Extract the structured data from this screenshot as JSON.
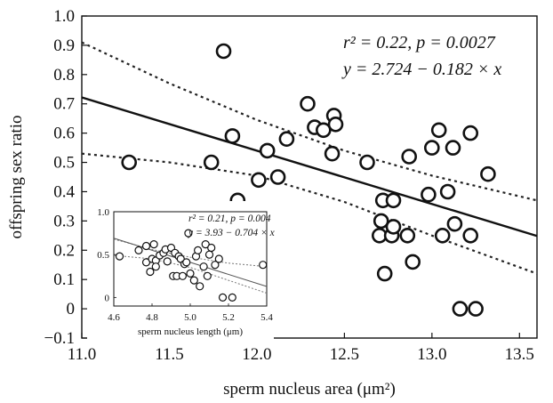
{
  "chart_data": [
    {
      "type": "scatter",
      "xlabel": "sperm nucleus area (μm²)",
      "ylabel": "offspring sex ratio",
      "xlim": [
        11.0,
        13.6
      ],
      "ylim": [
        -0.1,
        1.0
      ],
      "xticks": [
        "11.0",
        "11.5",
        "12.0",
        "12.5",
        "13.0",
        "13.5"
      ],
      "yticks": [
        "−0.1",
        "0",
        "0.1",
        "0.2",
        "0.3",
        "0.4",
        "0.5",
        "0.6",
        "0.7",
        "0.8",
        "0.9",
        "1.0"
      ],
      "annotation_stats": "r² = 0.22, p = 0.0027",
      "annotation_equation": "y = 2.724 − 0.182 × x",
      "fit": {
        "intercept": 2.724,
        "slope": -0.182
      },
      "ci_upper": [
        [
          11.0,
          0.91
        ],
        [
          11.5,
          0.77
        ],
        [
          12.0,
          0.645
        ],
        [
          12.5,
          0.54
        ],
        [
          13.0,
          0.455
        ],
        [
          13.6,
          0.37
        ]
      ],
      "ci_lower": [
        [
          11.0,
          0.53
        ],
        [
          11.5,
          0.5
        ],
        [
          12.0,
          0.455
        ],
        [
          12.5,
          0.365
        ],
        [
          13.0,
          0.25
        ],
        [
          13.6,
          0.12
        ]
      ],
      "points": [
        [
          11.27,
          0.5
        ],
        [
          11.74,
          0.5
        ],
        [
          11.81,
          0.88
        ],
        [
          11.86,
          0.59
        ],
        [
          11.89,
          0.37
        ],
        [
          12.01,
          0.44
        ],
        [
          12.06,
          0.54
        ],
        [
          12.12,
          0.45
        ],
        [
          12.17,
          0.58
        ],
        [
          12.29,
          0.7
        ],
        [
          12.33,
          0.62
        ],
        [
          12.38,
          0.61
        ],
        [
          12.43,
          0.53
        ],
        [
          12.44,
          0.66
        ],
        [
          12.45,
          0.63
        ],
        [
          12.63,
          0.5
        ],
        [
          12.7,
          0.25
        ],
        [
          12.71,
          0.3
        ],
        [
          12.72,
          0.37
        ],
        [
          12.73,
          0.12
        ],
        [
          12.77,
          0.25
        ],
        [
          12.78,
          0.28
        ],
        [
          12.78,
          0.37
        ],
        [
          12.86,
          0.25
        ],
        [
          12.87,
          0.52
        ],
        [
          12.89,
          0.16
        ],
        [
          12.98,
          0.39
        ],
        [
          13.0,
          0.55
        ],
        [
          13.04,
          0.61
        ],
        [
          13.06,
          0.25
        ],
        [
          13.09,
          0.4
        ],
        [
          13.12,
          0.55
        ],
        [
          13.13,
          0.29
        ],
        [
          13.16,
          0.0
        ],
        [
          13.22,
          0.25
        ],
        [
          13.22,
          0.6
        ],
        [
          13.25,
          0.0
        ],
        [
          13.32,
          0.46
        ]
      ]
    },
    {
      "type": "scatter",
      "xlabel": "sperm nucleus length (μm)",
      "xlim": [
        4.6,
        5.4
      ],
      "ylim": [
        -0.1,
        1.0
      ],
      "xticks": [
        "4.6",
        "4.8",
        "5.0",
        "5.2",
        "5.4"
      ],
      "yticks": [
        "0",
        "0.5",
        "1.0"
      ],
      "annotation_stats": "r² = 0.21, p = 0.004",
      "annotation_equation": "y = 3.93 − 0.704 × x",
      "fit": {
        "intercept": 3.93,
        "slope": -0.704
      },
      "ci_upper": [
        [
          4.6,
          0.68
        ],
        [
          4.8,
          0.56
        ],
        [
          5.0,
          0.47
        ],
        [
          5.2,
          0.4
        ],
        [
          5.4,
          0.36
        ]
      ],
      "ci_lower": [
        [
          4.6,
          0.49
        ],
        [
          4.8,
          0.45
        ],
        [
          5.0,
          0.35
        ],
        [
          5.2,
          0.2
        ],
        [
          5.4,
          0.05
        ]
      ],
      "points": [
        [
          4.63,
          0.48
        ],
        [
          4.73,
          0.55
        ],
        [
          4.77,
          0.6
        ],
        [
          4.77,
          0.41
        ],
        [
          4.79,
          0.3
        ],
        [
          4.8,
          0.45
        ],
        [
          4.81,
          0.62
        ],
        [
          4.82,
          0.43
        ],
        [
          4.82,
          0.36
        ],
        [
          4.84,
          0.49
        ],
        [
          4.86,
          0.52
        ],
        [
          4.87,
          0.56
        ],
        [
          4.88,
          0.42
        ],
        [
          4.9,
          0.58
        ],
        [
          4.91,
          0.25
        ],
        [
          4.92,
          0.52
        ],
        [
          4.93,
          0.25
        ],
        [
          4.94,
          0.48
        ],
        [
          4.95,
          0.45
        ],
        [
          4.96,
          0.25
        ],
        [
          4.97,
          0.39
        ],
        [
          4.98,
          0.41
        ],
        [
          4.99,
          0.75
        ],
        [
          5.0,
          0.28
        ],
        [
          5.02,
          0.2
        ],
        [
          5.03,
          0.48
        ],
        [
          5.04,
          0.55
        ],
        [
          5.05,
          0.13
        ],
        [
          5.07,
          0.36
        ],
        [
          5.08,
          0.62
        ],
        [
          5.09,
          0.25
        ],
        [
          5.1,
          0.5
        ],
        [
          5.11,
          0.58
        ],
        [
          5.13,
          0.38
        ],
        [
          5.15,
          0.45
        ],
        [
          5.17,
          0.0
        ],
        [
          5.22,
          0.0
        ],
        [
          5.38,
          0.38
        ]
      ]
    }
  ]
}
